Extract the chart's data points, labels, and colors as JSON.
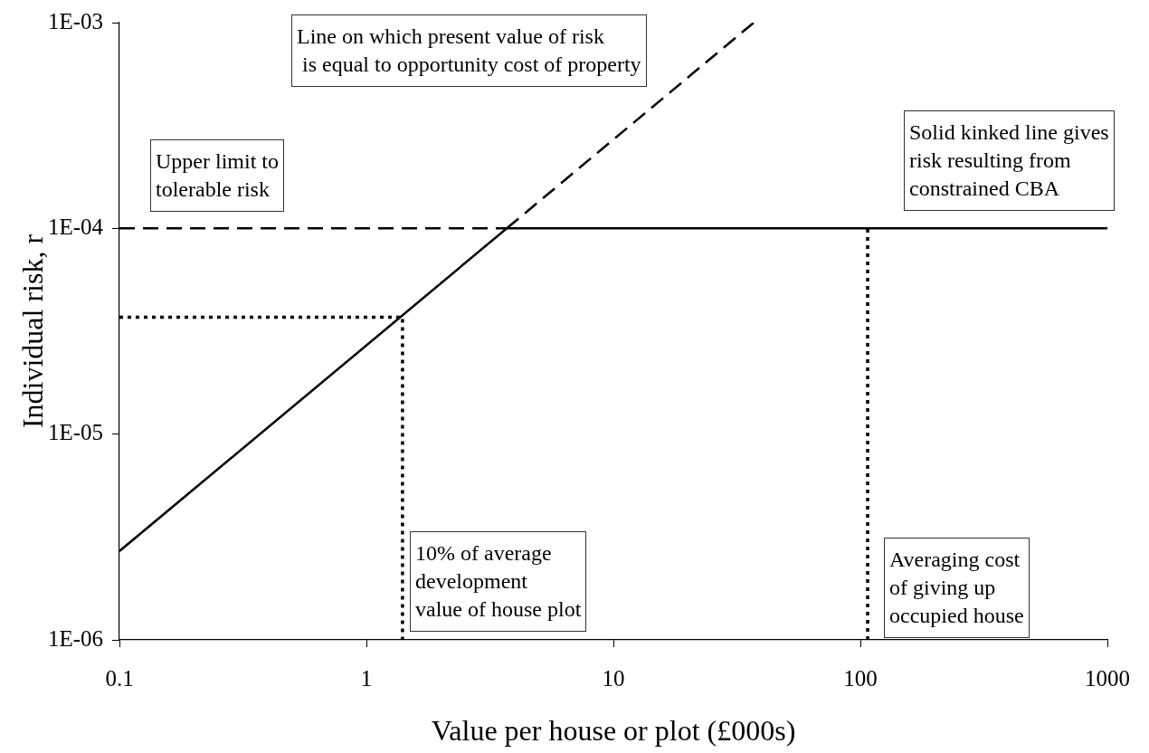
{
  "chart_data": {
    "type": "line",
    "xlabel": "Value per house or plot (£000s)",
    "ylabel": "Individual risk, r",
    "log": "xy",
    "marker": "none",
    "xlim": [
      0.1,
      1000
    ],
    "xticks": [
      0.1,
      1,
      10,
      100,
      1000
    ],
    "ylim": [
      1e-06,
      0.001
    ],
    "yticks": [
      {
        "value": 1e-06,
        "label": "1E-06"
      },
      {
        "value": 1e-05,
        "label": "1E-05"
      },
      {
        "value": 0.0001,
        "label": "1E-04"
      },
      {
        "value": 0.001,
        "label": "1E-03"
      }
    ],
    "series": [
      {
        "color": "#000000",
        "line_style": "dashed",
        "x": [
          0.1,
          3.7
        ],
        "values": [
          0.0001,
          0.0001
        ]
      },
      {
        "color": "#000000",
        "line_style": "dashed",
        "x": [
          3.7,
          37
        ],
        "values": [
          0.0001,
          0.001
        ]
      },
      {
        "color": "#000000",
        "line_style": "dotted",
        "x": [
          0.1,
          1.4,
          1.4
        ],
        "values": [
          3.7e-05,
          3.7e-05,
          1e-06
        ]
      },
      {
        "color": "#000000",
        "line_style": "dotted",
        "x": [
          107,
          107
        ],
        "values": [
          1e-06,
          0.0001
        ]
      },
      {
        "color": "#000000",
        "line_style": "solid",
        "x": [
          0.1,
          3.7,
          1000
        ],
        "values": [
          2.7e-06,
          0.0001,
          0.0001
        ]
      }
    ],
    "annotations": [
      "Line on which present value of risk\n is equal to opportunity cost of property",
      "Upper limit to\ntolerable risk",
      "Solid kinked line gives\nrisk resulting from\nconstrained CBA",
      "10% of average\ndevelopment\nvalue of house plot",
      "Averaging cost\nof giving up\noccupied house"
    ]
  }
}
